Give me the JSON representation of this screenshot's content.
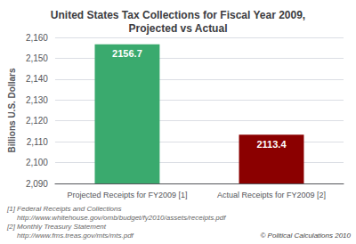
{
  "chart_data": {
    "type": "bar",
    "title": "United States Tax Collections for Fiscal Year 2009,\nProjected vs Actual",
    "categories": [
      "Projected Receipts for FY2009 [1]",
      "Actual Receipts for FY2009 [2]"
    ],
    "values": [
      2156.7,
      2113.4
    ],
    "colors": [
      "#3aaa6e",
      "#8b0000"
    ],
    "ylabel": "Billions U.S. Dollars",
    "ylim": [
      2090,
      2160
    ],
    "yticks": [
      2090,
      2100,
      2110,
      2120,
      2130,
      2140,
      2150,
      2160
    ],
    "grid": true,
    "data_labels": true,
    "annotations": [
      "[1] Federal Receipts and Collections",
      "     http://www.whitehouse.gov/omb/budget/fy2010/assets/receipts.pdf",
      "[2] Monthly Treasury Statement",
      "     http://www.fms.treas.gov/mts/mts.pdf",
      "© Political Calculations 2010"
    ]
  }
}
